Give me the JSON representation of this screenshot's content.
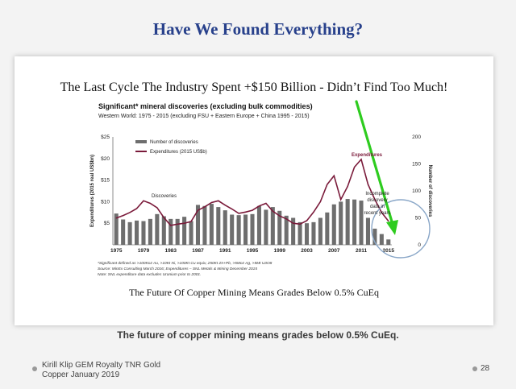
{
  "slide": {
    "title": "Have We Found Everything?",
    "caption": "The future of copper mining means grades below 0.5% CuEq.",
    "footer_line1": "Kirill Klip GEM Royalty TNR Gold",
    "footer_line2": "Copper January 2019",
    "page_number": "28"
  },
  "figure": {
    "headline": "The Last Cycle The Industry Spent +$150 Billion - Didn’t Find Too Much!",
    "bottom_text": "The Future Of Copper Mining Means Grades Below 0.5% CuEq"
  },
  "chart_data": {
    "type": "bar",
    "title": "Significant* mineral discoveries (excluding bulk commodities)",
    "subtitle": "Western World: 1975 - 2015 (excluding FSU + Eastern Europe + China 1995 - 2015)",
    "ylabel_left": "Expenditures (2015 real US$bn)",
    "ylabel_right": "Number of discoveries",
    "ylim_left": [
      0,
      25
    ],
    "ylim_right": [
      0,
      200
    ],
    "yticks_left": [
      "$5",
      "$10",
      "$15",
      "$20",
      "$25"
    ],
    "yticks_right": [
      "0",
      "50",
      "100",
      "150",
      "200"
    ],
    "xticks": [
      "1975",
      "1979",
      "1983",
      "1987",
      "1991",
      "1995",
      "1999",
      "2003",
      "2007",
      "2011",
      "2015"
    ],
    "legend": [
      "Number of discoveries",
      "Expenditures (2015 US$b)"
    ],
    "legend_position": "top-left",
    "annotations": {
      "discoveries": "Discoveries",
      "expenditures": "Expenditures",
      "incomplete": [
        "Incomplete",
        "discovery",
        "data in",
        "recent years"
      ]
    },
    "footnotes": [
      "*Significant defined as >100Koz Au, >10Kt Ni, >100Kt Cu equiv, 250Kt Zn+Pb, >5Moz Ag, >5Mt U3O8",
      "Source: MinEx Consulting March 2016; Expenditures – SNL Metals & Mining December 2015",
      "Note: SNL expenditure data excludes Uranium prior to 2001."
    ],
    "x": [
      1975,
      1976,
      1977,
      1978,
      1979,
      1980,
      1981,
      1982,
      1983,
      1984,
      1985,
      1986,
      1987,
      1988,
      1989,
      1990,
      1991,
      1992,
      1993,
      1994,
      1995,
      1996,
      1997,
      1998,
      1999,
      2000,
      2001,
      2002,
      2003,
      2004,
      2005,
      2006,
      2007,
      2008,
      2009,
      2010,
      2011,
      2012,
      2013,
      2014,
      2015
    ],
    "series": [
      {
        "name": "Number of discoveries",
        "kind": "bar",
        "axis": "right",
        "values": [
          58,
          47,
          42,
          45,
          44,
          48,
          57,
          53,
          48,
          48,
          52,
          44,
          74,
          72,
          76,
          70,
          64,
          56,
          55,
          56,
          57,
          72,
          65,
          70,
          63,
          54,
          50,
          42,
          40,
          42,
          50,
          60,
          75,
          80,
          85,
          84,
          82,
          50,
          30,
          20,
          10
        ]
      },
      {
        "name": "Expenditures (2015 US$b)",
        "kind": "line",
        "axis": "left",
        "values": [
          6.2,
          6.8,
          7.5,
          8.4,
          10.2,
          9.6,
          8.6,
          6.3,
          4.5,
          4.8,
          5.0,
          5.4,
          8.0,
          8.8,
          9.8,
          10.2,
          9.2,
          8.3,
          7.3,
          7.6,
          8.0,
          9.0,
          9.6,
          7.8,
          6.7,
          6.0,
          5.0,
          4.8,
          5.6,
          7.6,
          10.0,
          14.0,
          16.0,
          10.5,
          13.5,
          18.0,
          19.8,
          14.0,
          10.5,
          7.5,
          5.5
        ]
      }
    ],
    "colors": {
      "bars": "#6e6e6e",
      "line": "#7a1a3a",
      "arrow": "#2ecc1f",
      "circle": "#8aa7c8",
      "headline": "#111111"
    }
  }
}
